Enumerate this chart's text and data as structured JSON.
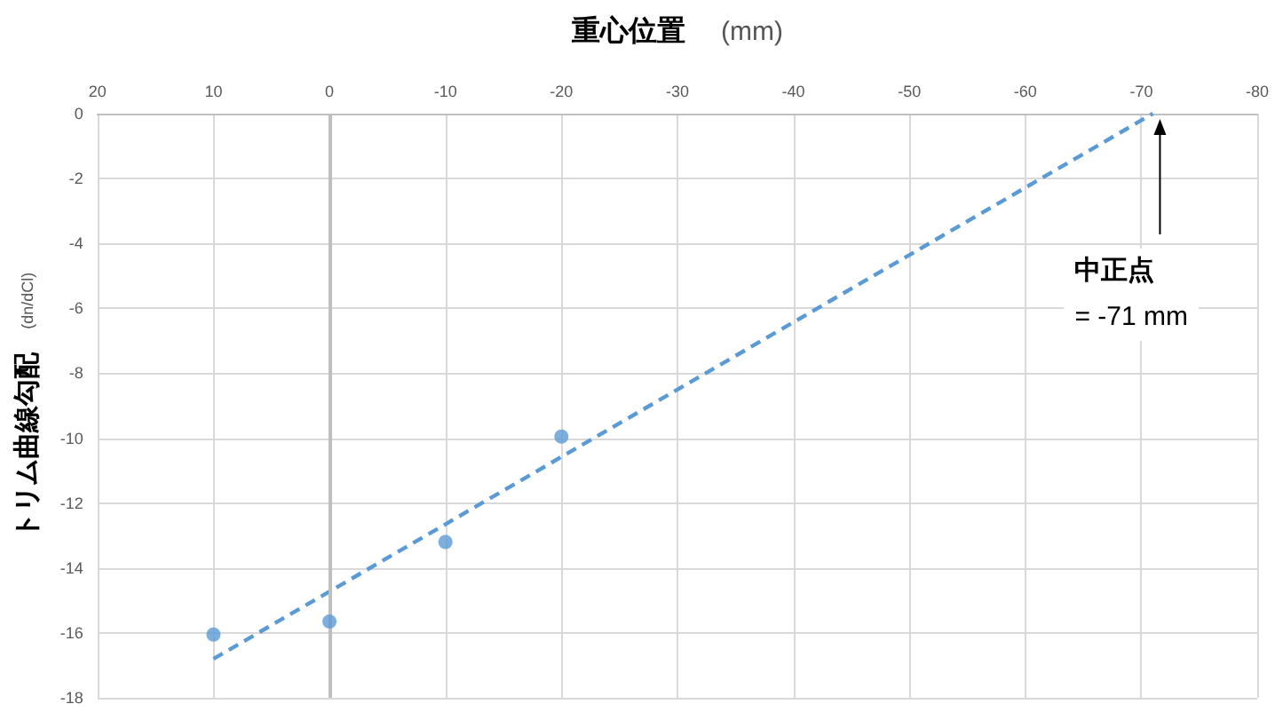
{
  "chart_data": {
    "type": "scatter",
    "xlabel": "重心位置 (mm)",
    "ylabel": "トリム曲線勾配 (dn/dCl)",
    "xlim": [
      20,
      -80
    ],
    "xticks": [
      20,
      10,
      0,
      -10,
      -20,
      -30,
      -40,
      -50,
      -60,
      -70,
      -80
    ],
    "ylim": [
      -18,
      0
    ],
    "yticks": [
      -18,
      -16,
      -14,
      -12,
      -10,
      -8,
      -6,
      -4,
      -2,
      0
    ],
    "grid": true,
    "marker": "circle",
    "series": [
      {
        "color": "#5b9bd5",
        "x": [
          10,
          0,
          -10,
          -20
        ],
        "values": [
          -16.05,
          -15.65,
          -13.2,
          -9.95
        ]
      },
      {
        "type": "line",
        "color": "#5b9bd5",
        "line_style": "dashed",
        "marker": "none",
        "x": [
          10,
          -71
        ],
        "values": [
          -16.8,
          0
        ]
      }
    ],
    "ref_lines": [
      {
        "axis": "x",
        "value": 0,
        "color": "#bfbfbf"
      }
    ],
    "annotations": [
      {
        "text": "中正点\n= -71 mm",
        "x": -71,
        "y": 0
      }
    ]
  }
}
